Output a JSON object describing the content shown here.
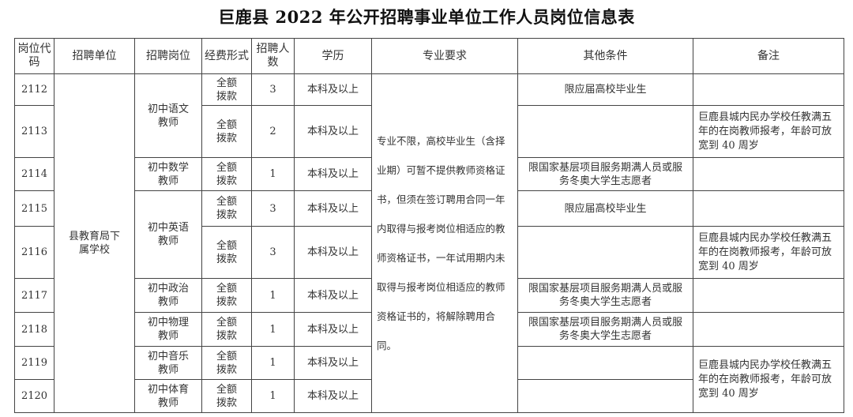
{
  "title": "巨鹿县 2022 年公开招聘事业单位工作人员岗位信息表",
  "headers": [
    "岗位代码",
    "招聘单位",
    "招聘岗位",
    "经费形式",
    "招聘人数",
    "学历",
    "专业要求",
    "其他条件",
    "备注"
  ],
  "unit": "县教育局下属学校",
  "major": "专业不限，高校毕业生（含择业期）可暂不提供教师资格证书，但须在签订聘用合同一年内取得与报考岗位相适应的教师资格证书，一年试用期内未取得与报考岗位相适应的教师资格证书的，将解除聘用合同。",
  "posts": [
    "初中语文教师",
    "初中数学教师",
    "初中英语教师",
    "初中政治教师",
    "初中物理教师",
    "初中音乐教师",
    "初中体育教师"
  ],
  "funding": "全额拨款",
  "education": "本科及以上",
  "cond_graduate": "限应届高校毕业生",
  "cond_service": "限国家基层项目服务期满人员或服务冬奥大学生志愿者",
  "remark": "巨鹿县城内民办学校任教满五年的在岗教师报考，年龄可放宽到 40 周岁",
  "rows": [
    {
      "code": "2112",
      "count": "3"
    },
    {
      "code": "2113",
      "count": "2"
    },
    {
      "code": "2114",
      "count": "1"
    },
    {
      "code": "2115",
      "count": "3"
    },
    {
      "code": "2116",
      "count": "3"
    },
    {
      "code": "2117",
      "count": "1"
    },
    {
      "code": "2118",
      "count": "1"
    },
    {
      "code": "2119",
      "count": "1"
    },
    {
      "code": "2120",
      "count": "1"
    }
  ]
}
